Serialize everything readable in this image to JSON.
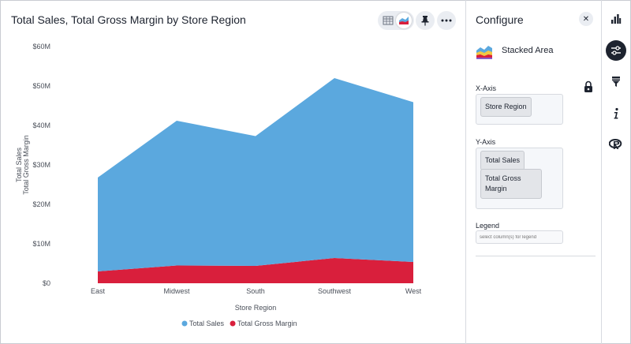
{
  "chart_panel": {
    "title": "Total Sales, Total Gross Margin by Store Region"
  },
  "chart_data": {
    "type": "area",
    "stacked": true,
    "categories": [
      "East",
      "Midwest",
      "South",
      "Southwest",
      "West"
    ],
    "series": [
      {
        "name": "Total Gross Margin",
        "values": [
          3.0,
          4.5,
          4.4,
          6.4,
          5.4
        ],
        "color": "#d91f3c"
      },
      {
        "name": "Total Sales",
        "values": [
          23.8,
          36.7,
          32.9,
          45.6,
          40.5
        ],
        "color": "#5ba8de"
      }
    ],
    "ylim": [
      0,
      60
    ],
    "yticks": [
      "$0",
      "$10M",
      "$20M",
      "$30M",
      "$40M",
      "$50M",
      "$60M"
    ],
    "xlabel": "Store Region",
    "ylabel_lines": [
      "Total Sales",
      "Total Gross Margin"
    ],
    "legend_position": "bottom",
    "legend": [
      "Total Sales",
      "Total Gross Margin"
    ],
    "grid": false
  },
  "configure": {
    "title": "Configure",
    "chart_type": "Stacked Area",
    "x_axis_label": "X-Axis",
    "x_axis_columns": [
      "Store Region"
    ],
    "y_axis_label": "Y-Axis",
    "y_axis_columns": [
      "Total Sales",
      "Total Gross Margin"
    ],
    "legend_label": "Legend",
    "legend_placeholder": "select column(s) for legend"
  },
  "rail": {
    "items": [
      "chart-type-icon",
      "configure-icon",
      "filter-icon",
      "info-icon",
      "r-icon"
    ],
    "active": "configure-icon"
  },
  "colors": {
    "sales": "#5ba8de",
    "margin": "#d91f3c",
    "active_rail": "#1d232f"
  }
}
